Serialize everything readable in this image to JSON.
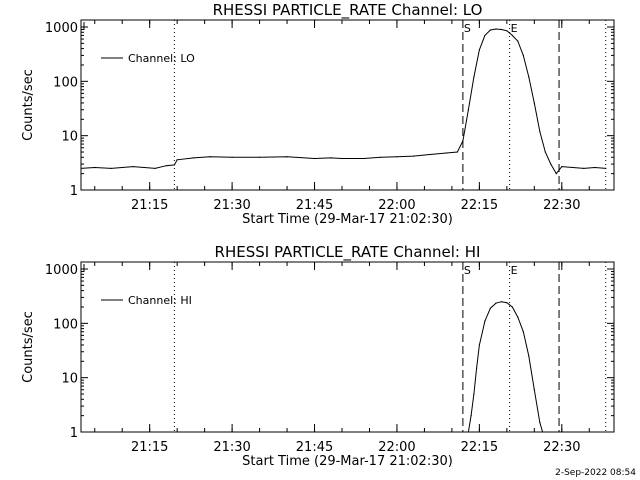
{
  "footer": {
    "timestamp": "2-Sep-2022 08:54"
  },
  "chart_data": [
    {
      "type": "line",
      "title": "RHESSI PARTICLE_RATE Channel: LO",
      "xlabel": "Start Time (29-Mar-17 21:02:30)",
      "ylabel": "Counts/sec",
      "y_scale": "log",
      "ylim": [
        1,
        1000
      ],
      "xlim": [
        "21:02:30",
        "22:39:30"
      ],
      "x_ticks": [
        "21:15",
        "21:30",
        "21:45",
        "22:00",
        "22:15",
        "22:30"
      ],
      "y_ticks": [
        "1",
        "10",
        "100",
        "1000"
      ],
      "legend": {
        "placement": "top-left",
        "entries": [
          "Channel: LO"
        ]
      },
      "markers": [
        {
          "time": "21:19:30",
          "style": "dotted",
          "label": ""
        },
        {
          "time": "22:12:00",
          "style": "dashed",
          "label": "S"
        },
        {
          "time": "22:20:30",
          "style": "dotted",
          "label": "E"
        },
        {
          "time": "22:29:30",
          "style": "dashed",
          "label": ""
        },
        {
          "time": "22:38:00",
          "style": "dotted",
          "label": ""
        }
      ],
      "series": [
        {
          "name": "Channel: LO",
          "x": [
            "21:02:30",
            "21:05:00",
            "21:08:00",
            "21:10:00",
            "21:12:00",
            "21:14:00",
            "21:16:00",
            "21:18:00",
            "21:19:30",
            "21:20:00",
            "21:23:00",
            "21:26:00",
            "21:30:00",
            "21:35:00",
            "21:40:00",
            "21:45:00",
            "21:48:00",
            "21:50:00",
            "21:54:00",
            "21:57:00",
            "22:00:00",
            "22:03:00",
            "22:06:00",
            "22:09:00",
            "22:11:00",
            "22:12:00",
            "22:13:00",
            "22:14:00",
            "22:15:00",
            "22:16:00",
            "22:17:00",
            "22:18:00",
            "22:19:00",
            "22:20:00",
            "22:21:00",
            "22:22:00",
            "22:23:00",
            "22:24:00",
            "22:25:00",
            "22:26:00",
            "22:27:00",
            "22:28:00",
            "22:29:00",
            "22:30:00",
            "22:32:00",
            "22:34:00",
            "22:36:00",
            "22:38:00"
          ],
          "y": [
            2.5,
            2.6,
            2.5,
            2.6,
            2.7,
            2.6,
            2.5,
            2.8,
            2.9,
            3.6,
            3.9,
            4.1,
            4.0,
            4.0,
            4.1,
            3.8,
            3.9,
            3.8,
            3.8,
            4.0,
            4.1,
            4.2,
            4.5,
            4.8,
            5.0,
            8.0,
            30,
            120,
            380,
            700,
            880,
            920,
            900,
            850,
            700,
            550,
            300,
            120,
            40,
            12,
            5.0,
            3.0,
            2.0,
            2.7,
            2.6,
            2.5,
            2.6,
            2.5
          ]
        }
      ]
    },
    {
      "type": "line",
      "title": "RHESSI PARTICLE_RATE Channel: HI",
      "xlabel": "Start Time (29-Mar-17 21:02:30)",
      "ylabel": "Counts/sec",
      "y_scale": "log",
      "ylim": [
        1,
        1000
      ],
      "xlim": [
        "21:02:30",
        "22:39:30"
      ],
      "x_ticks": [
        "21:15",
        "21:30",
        "21:45",
        "22:00",
        "22:15",
        "22:30"
      ],
      "y_ticks": [
        "1",
        "10",
        "100",
        "1000"
      ],
      "legend": {
        "placement": "top-left",
        "entries": [
          "Channel: HI"
        ]
      },
      "markers": [
        {
          "time": "21:19:30",
          "style": "dotted",
          "label": ""
        },
        {
          "time": "22:12:00",
          "style": "dashed",
          "label": "S"
        },
        {
          "time": "22:20:30",
          "style": "dotted",
          "label": "E"
        },
        {
          "time": "22:29:30",
          "style": "dashed",
          "label": ""
        },
        {
          "time": "22:38:00",
          "style": "dotted",
          "label": ""
        }
      ],
      "series": [
        {
          "name": "Channel: HI",
          "x": [
            "22:13:00",
            "22:13:30",
            "22:14:00",
            "22:14:30",
            "22:15:00",
            "22:16:00",
            "22:17:00",
            "22:18:00",
            "22:19:00",
            "22:20:00",
            "22:21:00",
            "22:22:00",
            "22:23:00",
            "22:24:00",
            "22:25:00",
            "22:26:00",
            "22:26:30"
          ],
          "y": [
            1.0,
            2.0,
            5.0,
            15,
            40,
            110,
            190,
            235,
            250,
            240,
            200,
            130,
            70,
            25,
            6,
            1.5,
            1.0
          ]
        }
      ]
    }
  ]
}
